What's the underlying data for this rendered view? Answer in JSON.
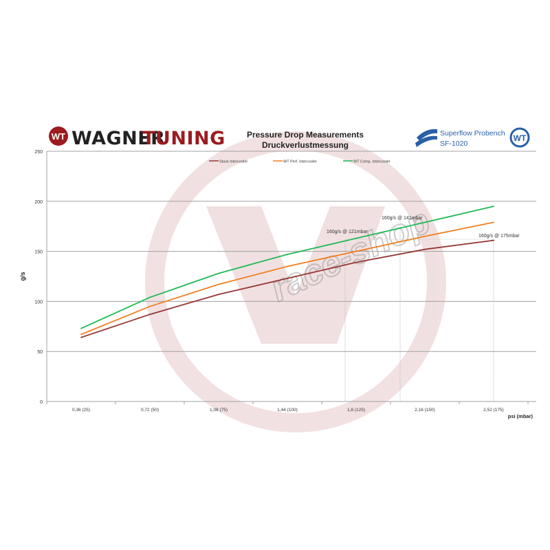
{
  "header": {
    "brand_left_a": "WAGNER",
    "brand_left_b": "TUNING",
    "brand_right_line1": "Superflow Probench",
    "brand_right_line2": "SF-1020"
  },
  "watermark": "race-shop",
  "colors": {
    "stock": "#943634",
    "perf": "#f07f1e",
    "comp": "#1db954",
    "brand_red": "#9b1b1e"
  },
  "chart_data": {
    "type": "line",
    "title": "Pressure Drop Measurements",
    "subtitle": "Druckverlustmessung",
    "xlabel": "psi (mbar)",
    "ylabel": "g/s",
    "categories": [
      "0,36 (25)",
      "0,72 (50)",
      "1,08 (75)",
      "1,44 (100)",
      "1,8 (125)",
      "2,16 (150)",
      "2,52 (175)"
    ],
    "ylim": [
      0,
      250
    ],
    "yticks": [
      0,
      50,
      100,
      150,
      200,
      250
    ],
    "grid": "horizontal",
    "legend": "top-center",
    "series": [
      {
        "name": "Stock Intercooler",
        "color": "#943634",
        "values": [
          64,
          87,
          107,
          123,
          139,
          152,
          161
        ]
      },
      {
        "name": "WT Perf. Intercooler",
        "color": "#f07f1e",
        "values": [
          67,
          95,
          117,
          135,
          150,
          165,
          179
        ]
      },
      {
        "name": "WT Comp. Intercooler",
        "color": "#1db954",
        "values": [
          73,
          104,
          128,
          147,
          163,
          179,
          195
        ]
      }
    ],
    "annotations": [
      {
        "text": "160g/s @ 121mbar",
        "mbar": 121,
        "value": 160
      },
      {
        "text": "160g/s @ 141mbar",
        "mbar": 141,
        "value": 160
      },
      {
        "text": "160g/s @ 175mbar",
        "mbar": 175,
        "value": 160
      }
    ]
  }
}
